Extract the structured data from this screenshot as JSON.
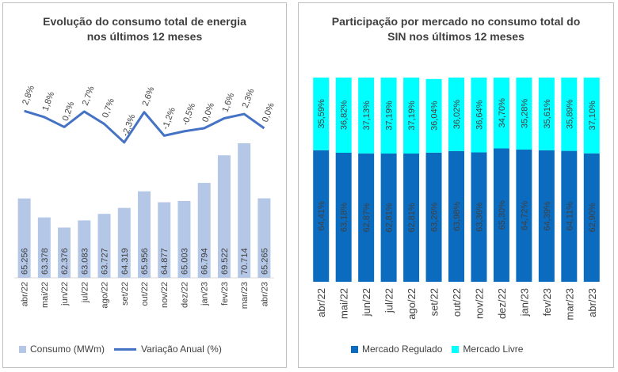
{
  "chart_data": [
    {
      "type": "bar",
      "title": "Evolução do consumo total de energia nos últimos 12 meses",
      "title_lines": [
        "Evolução do consumo total de energia",
        "nos últimos 12 meses"
      ],
      "categories": [
        "abr/22",
        "mai/22",
        "jun/22",
        "jul/22",
        "ago/22",
        "set/22",
        "out/22",
        "nov/22",
        "dez/22",
        "jan/23",
        "fev/23",
        "mar/23",
        "abr/23"
      ],
      "series": [
        {
          "name": "Consumo (MWm)",
          "type": "bar",
          "color": "#b4c7e7",
          "values": [
            65256,
            63378,
            62376,
            63083,
            63727,
            64319,
            65956,
            64877,
            65003,
            66794,
            69522,
            70714,
            65265
          ],
          "labels": [
            "65.256",
            "63.378",
            "62.376",
            "63.083",
            "63.727",
            "64.319",
            "65.956",
            "64.877",
            "65.003",
            "66.794",
            "69.522",
            "70.714",
            "65.265"
          ]
        },
        {
          "name": "Variação Anual (%)",
          "type": "line",
          "color": "#4472c4",
          "values": [
            2.8,
            1.8,
            0.2,
            2.7,
            0.7,
            -2.3,
            2.6,
            -1.2,
            -0.5,
            0.0,
            1.6,
            2.3,
            0.0
          ],
          "labels": [
            "2,8%",
            "1,8%",
            "0,2%",
            "2,7%",
            "0,7%",
            "-2,3%",
            "2,6%",
            "-1,2%",
            "-0,5%",
            "0,0%",
            "1,6%",
            "2,3%",
            "0,0%"
          ]
        }
      ],
      "legend_position": "bottom",
      "grid": false
    },
    {
      "type": "bar",
      "stacked": true,
      "title": "Participação por mercado no consumo total do SIN nos últimos 12 meses",
      "title_lines": [
        "Participação por mercado no consumo total do",
        "SIN nos últimos 12 meses"
      ],
      "categories": [
        "abr/22",
        "mai/22",
        "jun/22",
        "jul/22",
        "ago/22",
        "set/22",
        "out/22",
        "nov/22",
        "dez/22",
        "jan/23",
        "fev/23",
        "mar/23",
        "abr/23"
      ],
      "series": [
        {
          "name": "Mercado Regulado",
          "color": "#0b6bbf",
          "values": [
            64.41,
            63.18,
            62.87,
            62.81,
            62.81,
            63.26,
            63.98,
            63.36,
            65.3,
            64.72,
            64.39,
            64.11,
            62.9
          ],
          "labels": [
            "64,41%",
            "63,18%",
            "62,87%",
            "62,81%",
            "62,81%",
            "63,26%",
            "63,98%",
            "63,36%",
            "65,30%",
            "64,72%",
            "64,39%",
            "64,11%",
            "62,90%"
          ]
        },
        {
          "name": "Mercado Livre",
          "color": "#00ffff",
          "values": [
            35.59,
            36.82,
            37.13,
            37.19,
            37.19,
            36.04,
            36.02,
            36.64,
            34.7,
            35.28,
            35.61,
            35.89,
            37.1
          ],
          "labels": [
            "35,59%",
            "36,82%",
            "37,13%",
            "37,19%",
            "37,19%",
            "36,04%",
            "36,02%",
            "36,64%",
            "34,70%",
            "35,28%",
            "35,61%",
            "35,89%",
            "37,10%"
          ]
        }
      ],
      "legend_position": "bottom",
      "grid": false
    }
  ]
}
